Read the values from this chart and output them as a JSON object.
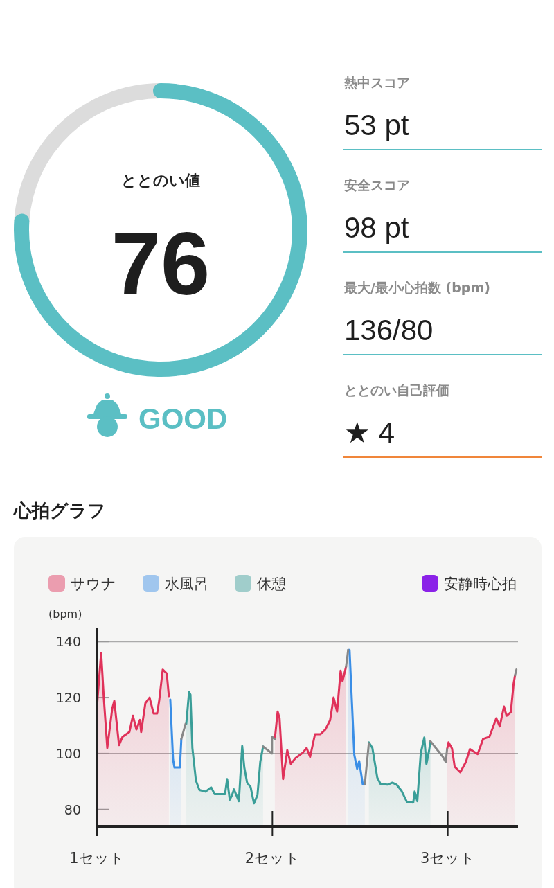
{
  "chart_data": [
    {
      "type": "donut",
      "title": "ととのい値",
      "categories": [
        null,
        null
      ],
      "values": [
        76,
        24
      ],
      "colors": [
        "#5bbfc4",
        "#dcdcdc"
      ],
      "annotations": [
        "76",
        "GOOD"
      ]
    },
    {
      "type": "other",
      "annotations": [
        "熱中スコア",
        "53 pt",
        "安全スコア",
        "98 pt",
        "最大/最小心拍数 (bpm)",
        "136/80",
        "ととのい自己評価",
        "★ 4"
      ]
    },
    {
      "type": "area",
      "title": "心拍グラフ",
      "ylabel": "(bpm)",
      "legend": "top",
      "ylim": [
        74,
        145
      ],
      "yticks": [
        80,
        100,
        120,
        140
      ],
      "xlim": [
        1,
        3.4
      ],
      "xticks": [
        {
          "value": 1,
          "label": "1セット"
        },
        {
          "value": 2,
          "label": "2セット"
        },
        {
          "value": 3,
          "label": "3セット"
        }
      ],
      "ref_lines": [
        {
          "axis": "y",
          "value": 100,
          "color": "#aaaaaa"
        },
        {
          "axis": "y",
          "value": 140,
          "color": "#aaaaaa"
        }
      ],
      "series": [
        {
          "name": "サウナ",
          "color": "#e0325a",
          "x": [
            1.0,
            1.024,
            1.039,
            1.059,
            1.087,
            1.099,
            1.126,
            1.146,
            1.185,
            1.205,
            1.225,
            1.245,
            1.252,
            1.276,
            1.3,
            1.323,
            1.343,
            1.355,
            1.375,
            1.398,
            1.41
          ],
          "values": [
            116.8,
            136,
            120,
            102,
            116,
            118.8,
            103,
            106,
            107.7,
            113.5,
            108.6,
            112,
            107.7,
            118,
            120,
            114.3,
            114.3,
            119,
            130,
            128.6,
            120.5
          ]
        },
        {
          "color": "#e0325a",
          "x": [
            2.014,
            2.03,
            2.041,
            2.061,
            2.085,
            2.105,
            2.132,
            2.172,
            2.195,
            2.215,
            2.243,
            2.274,
            2.302,
            2.329,
            2.349,
            2.369,
            2.389,
            2.4,
            2.42
          ],
          "values": [
            105.2,
            115,
            112.6,
            90.9,
            101.2,
            96.3,
            98.4,
            100.2,
            102,
            98.8,
            106.9,
            106.9,
            108.6,
            111.9,
            120,
            115,
            129.6,
            125.9,
            131
          ]
        },
        {
          "color": "#e0325a",
          "x": [
            2.996,
            3.004,
            3.024,
            3.039,
            3.071,
            3.103,
            3.126,
            3.17,
            3.201,
            3.237,
            3.276,
            3.296,
            3.32,
            3.335,
            3.359,
            3.375,
            3.383
          ],
          "values": [
            101.6,
            104,
            101.8,
            95.3,
            93.3,
            97,
            101.6,
            99.8,
            105.2,
            106,
            112.6,
            109.7,
            116.8,
            113.5,
            114.8,
            125,
            127.9
          ]
        },
        {
          "name": "水風呂",
          "color": "#3a8ee6",
          "x": [
            1.418,
            1.434,
            1.442,
            1.473,
            1.481
          ],
          "values": [
            119.3,
            97.8,
            95,
            95,
            105.2
          ]
        },
        {
          "color": "#3a8ee6",
          "x": [
            2.432,
            2.44,
            2.467,
            2.483,
            2.495,
            2.515,
            2.527
          ],
          "values": [
            137,
            137,
            99.5,
            94.6,
            97.3,
            89.1,
            89.1
          ]
        },
        {
          "name": "休憩",
          "color": "#3a9e98",
          "x": [
            1.509,
            1.525,
            1.533,
            1.544,
            1.564,
            1.584,
            1.619,
            1.651,
            1.671,
            1.73,
            1.742,
            1.757,
            1.769,
            1.781,
            1.809,
            1.828,
            1.84,
            1.856,
            1.876,
            1.895,
            1.915,
            1.931,
            1.947
          ],
          "values": [
            110.6,
            122,
            121,
            102,
            90.4,
            87,
            86.4,
            87.9,
            85.5,
            85.5,
            90.9,
            83.5,
            85,
            87.2,
            83,
            102.7,
            95,
            89.6,
            88,
            82.2,
            85.2,
            97,
            102.5
          ]
        },
        {
          "color": "#3a9e98",
          "x": [
            2.55,
            2.57,
            2.598,
            2.617,
            2.657,
            2.684,
            2.708,
            2.736,
            2.767,
            2.803,
            2.811,
            2.826,
            2.846,
            2.866,
            2.878,
            2.893,
            2.901
          ],
          "values": [
            104,
            102,
            91.4,
            89.1,
            88.9,
            89.6,
            88.9,
            86.7,
            82.7,
            82.5,
            86.4,
            83,
            100.2,
            105.7,
            96.3,
            101,
            104.4
          ]
        },
        {
          "type": "line",
          "color": "#888888",
          "x": [
            1.481,
            1.505
          ],
          "values": [
            105.2,
            110.6
          ]
        },
        {
          "type": "line",
          "color": "#888888",
          "x": [
            1.947,
            1.998,
            1.998,
            2.014
          ],
          "values": [
            102.5,
            100,
            106,
            105.2
          ]
        },
        {
          "type": "line",
          "color": "#888888",
          "x": [
            2.42,
            2.432
          ],
          "values": [
            131,
            137
          ]
        },
        {
          "type": "line",
          "color": "#888888",
          "x": [
            2.527,
            2.55
          ],
          "values": [
            89.1,
            103.7
          ]
        },
        {
          "type": "line",
          "color": "#888888",
          "x": [
            2.901,
            2.972,
            2.988,
            2.996
          ],
          "values": [
            104.4,
            98.8,
            97,
            101.6
          ]
        },
        {
          "type": "line",
          "color": "#888888",
          "x": [
            3.383,
            3.391
          ],
          "values": [
            127.9,
            130
          ]
        },
        {
          "type": "line",
          "name": "安静時心拍",
          "color": "#8b22e8"
        }
      ]
    }
  ]
}
